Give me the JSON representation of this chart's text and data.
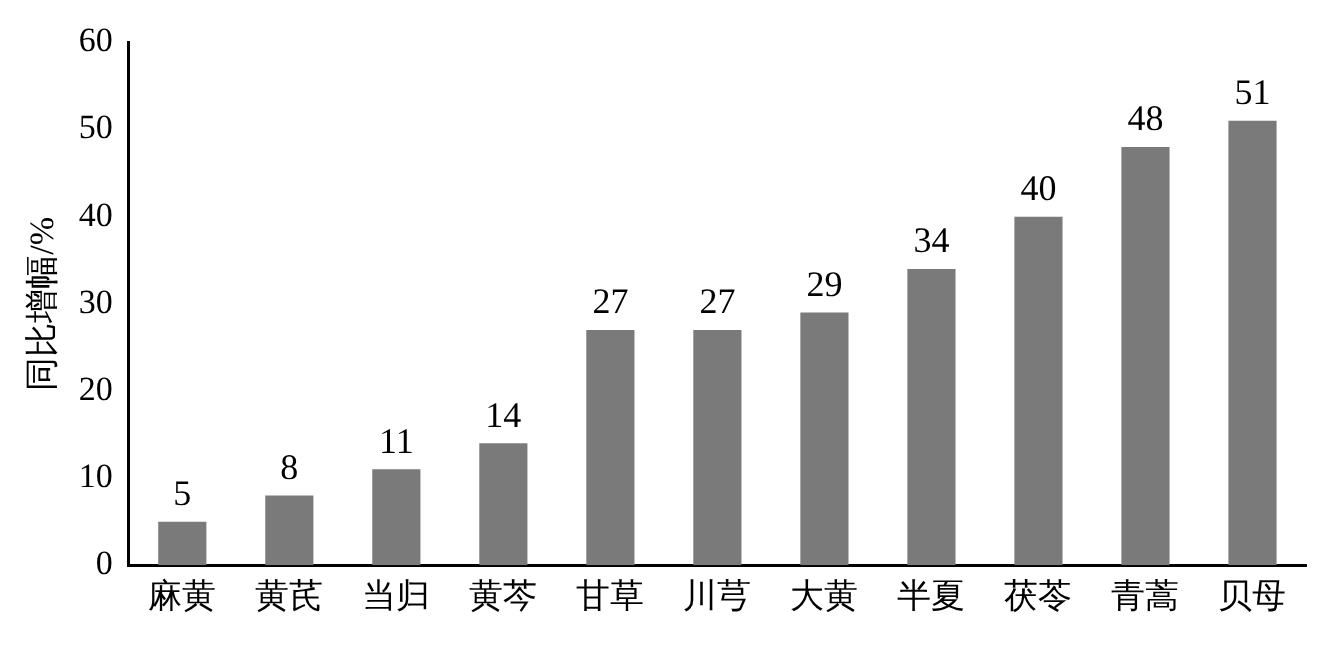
{
  "chart_data": {
    "type": "bar",
    "ylabel": "同比增幅/%",
    "categories": [
      "麻黄",
      "黄芪",
      "当归",
      "黄芩",
      "甘草",
      "川芎",
      "大黄",
      "半夏",
      "茯苓",
      "青蒿",
      "贝母"
    ],
    "values": [
      5,
      8,
      11,
      14,
      27,
      27,
      29,
      34,
      40,
      48,
      51
    ],
    "color": "#7a7a7a",
    "ylim": [
      0,
      60
    ],
    "yticks": [
      0,
      10,
      20,
      30,
      40,
      50,
      60
    ],
    "grid": false,
    "legend": false,
    "data_labels": true
  }
}
